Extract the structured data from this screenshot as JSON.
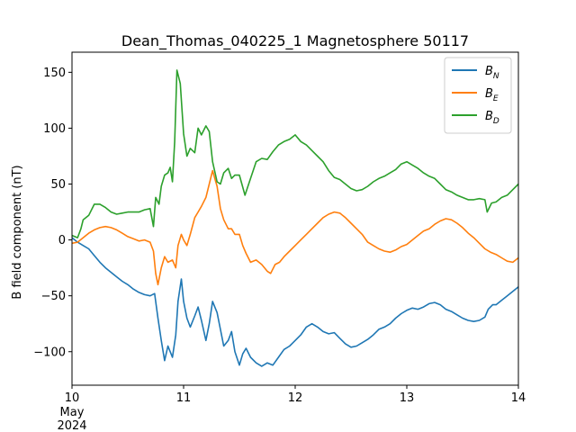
{
  "chart_data": {
    "type": "line",
    "title": "Dean_Thomas_040225_1 Magnetosphere 50117",
    "xlabel": "",
    "ylabel": "B field component (nT)",
    "x_range": [
      10,
      14
    ],
    "ylim": [
      -130,
      168
    ],
    "x_ticks": [
      {
        "value": 10,
        "label": "10"
      },
      {
        "value": 11,
        "label": "11"
      },
      {
        "value": 12,
        "label": "12"
      },
      {
        "value": 13,
        "label": "13"
      },
      {
        "value": 14,
        "label": "14"
      }
    ],
    "x_offset_text": [
      "May",
      "2024"
    ],
    "y_ticks": [
      -100,
      -50,
      0,
      50,
      100,
      150
    ],
    "y_tick_labels": [
      "−100",
      "−50",
      "0",
      "50",
      "100",
      "150"
    ],
    "legend_placement": "top-right",
    "grid": false,
    "series": [
      {
        "name": "B",
        "subscript": "N",
        "color": "#1f77b4",
        "points": [
          [
            10.0,
            2
          ],
          [
            10.05,
            -2
          ],
          [
            10.1,
            -5
          ],
          [
            10.15,
            -8
          ],
          [
            10.2,
            -14
          ],
          [
            10.25,
            -20
          ],
          [
            10.3,
            -25
          ],
          [
            10.35,
            -29
          ],
          [
            10.4,
            -33
          ],
          [
            10.45,
            -37
          ],
          [
            10.5,
            -40
          ],
          [
            10.55,
            -44
          ],
          [
            10.6,
            -47
          ],
          [
            10.65,
            -49
          ],
          [
            10.7,
            -50
          ],
          [
            10.74,
            -48
          ],
          [
            10.77,
            -70
          ],
          [
            10.8,
            -90
          ],
          [
            10.83,
            -108
          ],
          [
            10.86,
            -95
          ],
          [
            10.9,
            -105
          ],
          [
            10.93,
            -85
          ],
          [
            10.95,
            -55
          ],
          [
            10.98,
            -35
          ],
          [
            11.0,
            -55
          ],
          [
            11.03,
            -70
          ],
          [
            11.06,
            -78
          ],
          [
            11.1,
            -68
          ],
          [
            11.13,
            -60
          ],
          [
            11.16,
            -72
          ],
          [
            11.2,
            -90
          ],
          [
            11.23,
            -75
          ],
          [
            11.26,
            -55
          ],
          [
            11.3,
            -65
          ],
          [
            11.33,
            -80
          ],
          [
            11.36,
            -95
          ],
          [
            11.4,
            -90
          ],
          [
            11.43,
            -82
          ],
          [
            11.46,
            -100
          ],
          [
            11.5,
            -112
          ],
          [
            11.53,
            -102
          ],
          [
            11.56,
            -97
          ],
          [
            11.6,
            -105
          ],
          [
            11.65,
            -110
          ],
          [
            11.7,
            -113
          ],
          [
            11.75,
            -110
          ],
          [
            11.8,
            -112
          ],
          [
            11.85,
            -105
          ],
          [
            11.9,
            -98
          ],
          [
            11.95,
            -95
          ],
          [
            12.0,
            -90
          ],
          [
            12.05,
            -85
          ],
          [
            12.1,
            -78
          ],
          [
            12.15,
            -75
          ],
          [
            12.2,
            -78
          ],
          [
            12.25,
            -82
          ],
          [
            12.3,
            -84
          ],
          [
            12.35,
            -83
          ],
          [
            12.4,
            -88
          ],
          [
            12.45,
            -93
          ],
          [
            12.5,
            -96
          ],
          [
            12.55,
            -95
          ],
          [
            12.6,
            -92
          ],
          [
            12.65,
            -89
          ],
          [
            12.7,
            -85
          ],
          [
            12.75,
            -80
          ],
          [
            12.8,
            -78
          ],
          [
            12.85,
            -75
          ],
          [
            12.9,
            -70
          ],
          [
            12.95,
            -66
          ],
          [
            13.0,
            -63
          ],
          [
            13.05,
            -61
          ],
          [
            13.1,
            -62
          ],
          [
            13.15,
            -60
          ],
          [
            13.2,
            -57
          ],
          [
            13.25,
            -56
          ],
          [
            13.3,
            -58
          ],
          [
            13.35,
            -62
          ],
          [
            13.4,
            -64
          ],
          [
            13.45,
            -67
          ],
          [
            13.5,
            -70
          ],
          [
            13.55,
            -72
          ],
          [
            13.6,
            -73
          ],
          [
            13.65,
            -72
          ],
          [
            13.7,
            -69
          ],
          [
            13.73,
            -62
          ],
          [
            13.77,
            -58
          ],
          [
            13.8,
            -58
          ],
          [
            13.85,
            -54
          ],
          [
            13.9,
            -50
          ],
          [
            13.95,
            -46
          ],
          [
            14.0,
            -42
          ]
        ]
      },
      {
        "name": "B",
        "subscript": "E",
        "color": "#ff7f0e",
        "points": [
          [
            10.0,
            -3
          ],
          [
            10.05,
            -2
          ],
          [
            10.1,
            2
          ],
          [
            10.15,
            6
          ],
          [
            10.2,
            9
          ],
          [
            10.25,
            11
          ],
          [
            10.3,
            12
          ],
          [
            10.35,
            11
          ],
          [
            10.4,
            9
          ],
          [
            10.45,
            6
          ],
          [
            10.5,
            3
          ],
          [
            10.55,
            1
          ],
          [
            10.6,
            -1
          ],
          [
            10.65,
            0
          ],
          [
            10.7,
            -2
          ],
          [
            10.73,
            -10
          ],
          [
            10.75,
            -30
          ],
          [
            10.77,
            -40
          ],
          [
            10.8,
            -25
          ],
          [
            10.83,
            -15
          ],
          [
            10.86,
            -20
          ],
          [
            10.9,
            -18
          ],
          [
            10.93,
            -25
          ],
          [
            10.95,
            -5
          ],
          [
            10.98,
            5
          ],
          [
            11.0,
            0
          ],
          [
            11.03,
            -5
          ],
          [
            11.06,
            5
          ],
          [
            11.1,
            20
          ],
          [
            11.13,
            25
          ],
          [
            11.16,
            30
          ],
          [
            11.2,
            38
          ],
          [
            11.23,
            50
          ],
          [
            11.26,
            62
          ],
          [
            11.3,
            48
          ],
          [
            11.33,
            28
          ],
          [
            11.36,
            18
          ],
          [
            11.4,
            10
          ],
          [
            11.43,
            10
          ],
          [
            11.46,
            5
          ],
          [
            11.5,
            5
          ],
          [
            11.53,
            -5
          ],
          [
            11.56,
            -12
          ],
          [
            11.6,
            -20
          ],
          [
            11.65,
            -18
          ],
          [
            11.7,
            -22
          ],
          [
            11.75,
            -28
          ],
          [
            11.78,
            -30
          ],
          [
            11.82,
            -22
          ],
          [
            11.86,
            -20
          ],
          [
            11.9,
            -15
          ],
          [
            11.95,
            -10
          ],
          [
            12.0,
            -5
          ],
          [
            12.05,
            0
          ],
          [
            12.1,
            5
          ],
          [
            12.15,
            10
          ],
          [
            12.2,
            15
          ],
          [
            12.25,
            20
          ],
          [
            12.3,
            23
          ],
          [
            12.35,
            25
          ],
          [
            12.4,
            24
          ],
          [
            12.45,
            20
          ],
          [
            12.5,
            15
          ],
          [
            12.55,
            10
          ],
          [
            12.6,
            5
          ],
          [
            12.65,
            -2
          ],
          [
            12.7,
            -5
          ],
          [
            12.75,
            -8
          ],
          [
            12.8,
            -10
          ],
          [
            12.85,
            -11
          ],
          [
            12.9,
            -9
          ],
          [
            12.95,
            -6
          ],
          [
            13.0,
            -4
          ],
          [
            13.05,
            0
          ],
          [
            13.1,
            4
          ],
          [
            13.15,
            8
          ],
          [
            13.2,
            10
          ],
          [
            13.25,
            14
          ],
          [
            13.3,
            17
          ],
          [
            13.35,
            19
          ],
          [
            13.4,
            18
          ],
          [
            13.45,
            15
          ],
          [
            13.5,
            11
          ],
          [
            13.55,
            6
          ],
          [
            13.6,
            2
          ],
          [
            13.65,
            -3
          ],
          [
            13.7,
            -8
          ],
          [
            13.75,
            -11
          ],
          [
            13.8,
            -13
          ],
          [
            13.85,
            -16
          ],
          [
            13.9,
            -19
          ],
          [
            13.95,
            -20
          ],
          [
            14.0,
            -16
          ]
        ]
      },
      {
        "name": "B",
        "subscript": "D",
        "color": "#2ca02c",
        "points": [
          [
            10.0,
            4
          ],
          [
            10.05,
            2
          ],
          [
            10.08,
            10
          ],
          [
            10.1,
            18
          ],
          [
            10.15,
            22
          ],
          [
            10.2,
            32
          ],
          [
            10.25,
            32
          ],
          [
            10.3,
            29
          ],
          [
            10.35,
            25
          ],
          [
            10.4,
            23
          ],
          [
            10.45,
            24
          ],
          [
            10.5,
            25
          ],
          [
            10.55,
            25
          ],
          [
            10.6,
            25
          ],
          [
            10.65,
            27
          ],
          [
            10.7,
            28
          ],
          [
            10.73,
            12
          ],
          [
            10.75,
            38
          ],
          [
            10.78,
            32
          ],
          [
            10.8,
            48
          ],
          [
            10.83,
            58
          ],
          [
            10.86,
            60
          ],
          [
            10.88,
            65
          ],
          [
            10.9,
            52
          ],
          [
            10.92,
            88
          ],
          [
            10.94,
            152
          ],
          [
            10.97,
            140
          ],
          [
            11.0,
            95
          ],
          [
            11.03,
            75
          ],
          [
            11.06,
            82
          ],
          [
            11.1,
            78
          ],
          [
            11.13,
            100
          ],
          [
            11.16,
            94
          ],
          [
            11.2,
            102
          ],
          [
            11.23,
            97
          ],
          [
            11.26,
            70
          ],
          [
            11.3,
            52
          ],
          [
            11.33,
            50
          ],
          [
            11.36,
            60
          ],
          [
            11.4,
            64
          ],
          [
            11.43,
            55
          ],
          [
            11.46,
            58
          ],
          [
            11.5,
            58
          ],
          [
            11.55,
            40
          ],
          [
            11.6,
            55
          ],
          [
            11.65,
            70
          ],
          [
            11.7,
            73
          ],
          [
            11.75,
            72
          ],
          [
            11.8,
            79
          ],
          [
            11.85,
            85
          ],
          [
            11.9,
            88
          ],
          [
            11.95,
            90
          ],
          [
            12.0,
            94
          ],
          [
            12.05,
            88
          ],
          [
            12.1,
            85
          ],
          [
            12.15,
            80
          ],
          [
            12.2,
            75
          ],
          [
            12.25,
            70
          ],
          [
            12.3,
            62
          ],
          [
            12.35,
            56
          ],
          [
            12.4,
            54
          ],
          [
            12.45,
            50
          ],
          [
            12.5,
            46
          ],
          [
            12.55,
            44
          ],
          [
            12.6,
            45
          ],
          [
            12.65,
            48
          ],
          [
            12.7,
            52
          ],
          [
            12.75,
            55
          ],
          [
            12.8,
            57
          ],
          [
            12.85,
            60
          ],
          [
            12.9,
            63
          ],
          [
            12.95,
            68
          ],
          [
            13.0,
            70
          ],
          [
            13.05,
            67
          ],
          [
            13.1,
            64
          ],
          [
            13.15,
            60
          ],
          [
            13.2,
            57
          ],
          [
            13.25,
            55
          ],
          [
            13.3,
            50
          ],
          [
            13.35,
            45
          ],
          [
            13.4,
            43
          ],
          [
            13.45,
            40
          ],
          [
            13.5,
            38
          ],
          [
            13.55,
            36
          ],
          [
            13.6,
            36
          ],
          [
            13.65,
            37
          ],
          [
            13.7,
            36
          ],
          [
            13.72,
            25
          ],
          [
            13.76,
            33
          ],
          [
            13.8,
            34
          ],
          [
            13.85,
            38
          ],
          [
            13.9,
            40
          ],
          [
            13.95,
            45
          ],
          [
            14.0,
            50
          ]
        ]
      }
    ]
  }
}
